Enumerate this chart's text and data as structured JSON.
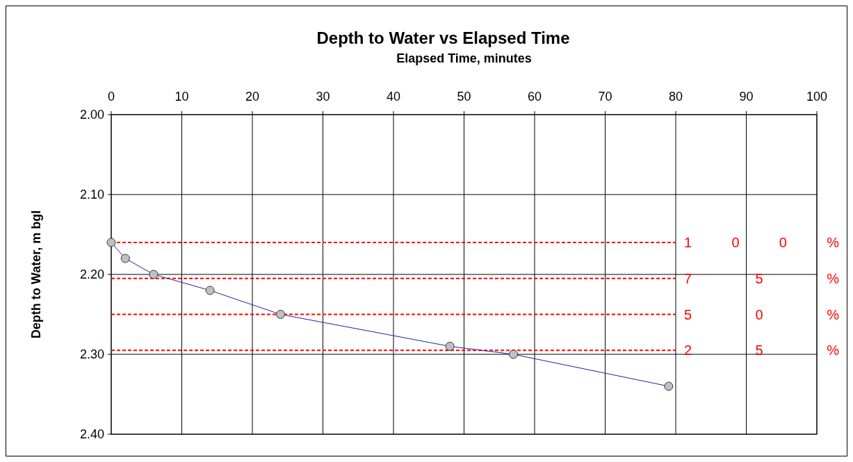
{
  "chart_data": {
    "type": "line",
    "title": "Depth to Water vs Elapsed Time",
    "xlabel": "Elapsed Time, minutes",
    "ylabel": "Depth to Water, m bgl",
    "x": [
      0,
      2,
      6,
      14,
      24,
      48,
      57,
      79
    ],
    "series": [
      {
        "color": "#1f1fa0",
        "values": [
          2.16,
          2.18,
          2.2,
          2.22,
          2.25,
          2.29,
          2.3,
          2.34
        ]
      }
    ],
    "xlim": [
      0,
      100
    ],
    "xticks": [
      0,
      10,
      20,
      30,
      40,
      50,
      60,
      70,
      80,
      90,
      100
    ],
    "ylim": [
      2.4,
      2.0
    ],
    "yticks": [
      {
        "value": 2.0,
        "label": "2.00"
      },
      {
        "value": 2.1,
        "label": "2.10"
      },
      {
        "value": 2.2,
        "label": "2.20"
      },
      {
        "value": 2.3,
        "label": "2.30"
      },
      {
        "value": 2.4,
        "label": "2.40"
      }
    ],
    "ref_lines": [
      {
        "axis": "y",
        "value": 2.16,
        "color": "#ff0000",
        "line_style": "dashed"
      },
      {
        "axis": "y",
        "value": 2.205,
        "color": "#ff0000",
        "line_style": "dashed"
      },
      {
        "axis": "y",
        "value": 2.25,
        "color": "#ff0000",
        "line_style": "dashed"
      },
      {
        "axis": "y",
        "value": 2.295,
        "color": "#ff0000",
        "line_style": "dashed"
      }
    ],
    "annotations": [
      "100%",
      "75%",
      "50%",
      "25%"
    ],
    "grid": true,
    "marker": "circle",
    "line_style": "solid"
  }
}
